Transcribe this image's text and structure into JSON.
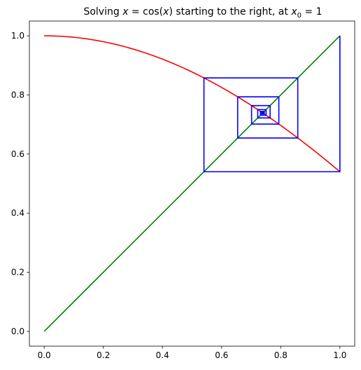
{
  "chart_data": {
    "type": "line",
    "title": {
      "prefix": "Solving ",
      "equation_lhs": "x",
      "equation_mid": " = cos(",
      "equation_arg": "x",
      "equation_end": ")",
      "suffix": " starting to the right, at ",
      "start_var": "x",
      "start_sub": "0",
      "start_val": " = 1"
    },
    "xlabel": "",
    "ylabel": "",
    "xlim": [
      -0.05,
      1.05
    ],
    "ylim": [
      -0.05,
      1.05
    ],
    "x_ticks": [
      {
        "value": 0.0,
        "label": "0.0"
      },
      {
        "value": 0.2,
        "label": "0.2"
      },
      {
        "value": 0.4,
        "label": "0.4"
      },
      {
        "value": 0.6,
        "label": "0.6"
      },
      {
        "value": 0.8,
        "label": "0.8"
      },
      {
        "value": 1.0,
        "label": "1.0"
      }
    ],
    "y_ticks": [
      {
        "value": 0.0,
        "label": "0.0"
      },
      {
        "value": 0.2,
        "label": "0.2"
      },
      {
        "value": 0.4,
        "label": "0.4"
      },
      {
        "value": 0.6,
        "label": "0.6"
      },
      {
        "value": 0.8,
        "label": "0.8"
      },
      {
        "value": 1.0,
        "label": "1.0"
      }
    ],
    "grid": false,
    "legend": "none",
    "series": [
      {
        "function": "cos(x)",
        "color": "#ff0000",
        "x_range": [
          0,
          1
        ],
        "samples": 101
      },
      {
        "function": "x",
        "color": "#008000",
        "points": [
          [
            0,
            0
          ],
          [
            1,
            1
          ]
        ]
      },
      {
        "kind": "cobweb",
        "color": "#0000ff",
        "x0": 1,
        "iterations": 40
      }
    ]
  }
}
